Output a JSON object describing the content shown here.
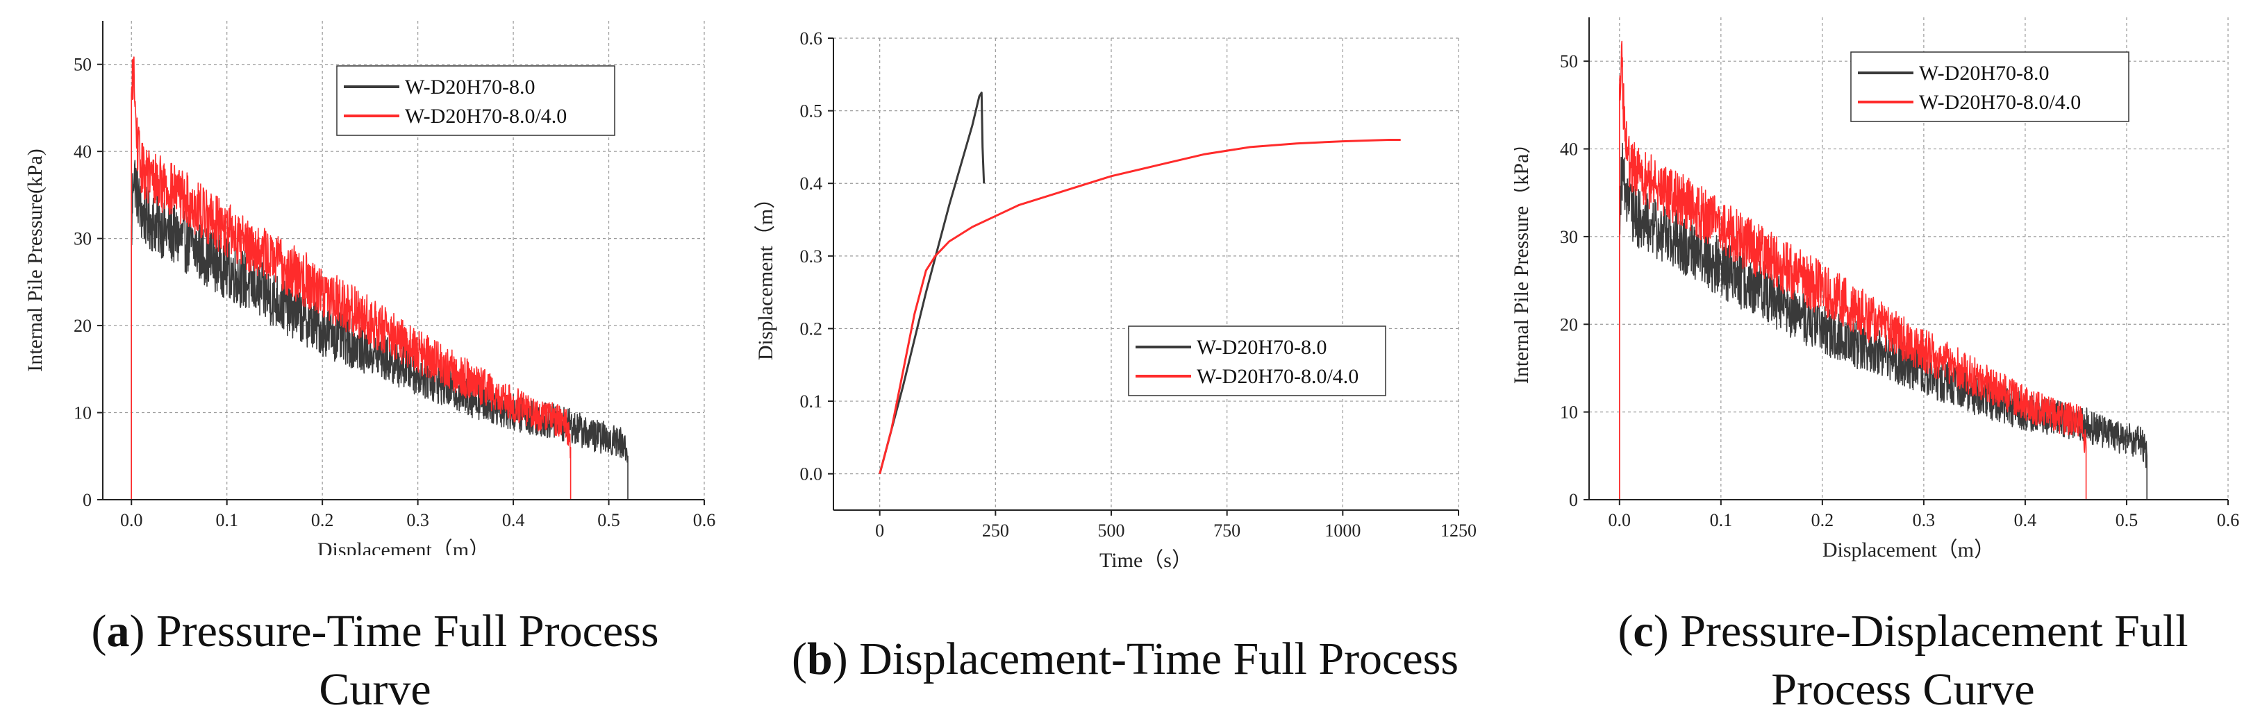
{
  "colors": {
    "series_black": "#3a3a3a",
    "series_red": "#ff2b2b",
    "grid": "#9a9a9a",
    "axis": "#222222"
  },
  "captions": {
    "a": {
      "letter": "a",
      "text": " Pressure-Time Full Process Curve"
    },
    "b": {
      "letter": "b",
      "text": " Displacement-Time Full Process"
    },
    "c": {
      "letter": "c",
      "text": " Pressure-Displacement Full Process Curve"
    }
  },
  "chart_data": [
    {
      "id": "a",
      "type": "line",
      "xlabel": "Displacement（m）",
      "ylabel": "Internal Pile Pressure(kPa)",
      "xlim": [
        -0.03,
        0.6
      ],
      "ylim": [
        0,
        55
      ],
      "xticks": [
        0.0,
        0.1,
        0.2,
        0.3,
        0.4,
        0.5,
        0.6
      ],
      "xtick_labels": [
        "0.0",
        "0.1",
        "0.2",
        "0.3",
        "0.4",
        "0.5",
        "0.6"
      ],
      "yticks": [
        0,
        10,
        20,
        30,
        40,
        50
      ],
      "ytick_labels": [
        "0",
        "10",
        "20",
        "30",
        "40",
        "50"
      ],
      "grid": true,
      "legend_position": "top-right",
      "series": [
        {
          "name": "W-D20H70-8.0",
          "color": "#3a3a3a",
          "noise": 3.5,
          "x": [
            0.0,
            0.0,
            0.002,
            0.005,
            0.01,
            0.02,
            0.05,
            0.1,
            0.15,
            0.2,
            0.25,
            0.3,
            0.35,
            0.4,
            0.43,
            0.46,
            0.48,
            0.5,
            0.515,
            0.52,
            0.52,
            0.52
          ],
          "y": [
            0,
            30,
            38,
            36,
            33,
            32,
            30,
            26.5,
            23,
            19.5,
            17,
            14.5,
            12,
            10,
            9.3,
            8.5,
            7.5,
            7,
            6.5,
            5,
            2,
            0
          ]
        },
        {
          "name": "W-D20H70-8.0/4.0",
          "color": "#ff2b2b",
          "noise": 3.2,
          "x": [
            0.0,
            0.0,
            0.002,
            0.005,
            0.01,
            0.02,
            0.05,
            0.1,
            0.15,
            0.2,
            0.25,
            0.3,
            0.35,
            0.4,
            0.43,
            0.455,
            0.46,
            0.46,
            0.46
          ],
          "y": [
            0,
            45,
            50,
            42,
            38,
            37,
            35,
            31,
            27.5,
            24,
            20.5,
            17,
            14,
            11,
            9.5,
            9,
            6,
            2,
            0
          ]
        }
      ]
    },
    {
      "id": "b",
      "type": "line",
      "xlabel": "Time（s）",
      "ylabel": "Displacement（m）",
      "xlim": [
        -100,
        1250
      ],
      "ylim": [
        -0.05,
        0.6
      ],
      "xticks": [
        0,
        250,
        500,
        750,
        1000,
        1250
      ],
      "xtick_labels": [
        "0",
        "250",
        "500",
        "750",
        "1000",
        "1250"
      ],
      "yticks": [
        0.0,
        0.1,
        0.2,
        0.3,
        0.4,
        0.5,
        0.6
      ],
      "ytick_labels": [
        "0.0",
        "0.1",
        "0.2",
        "0.3",
        "0.4",
        "0.5",
        "0.6"
      ],
      "grid": true,
      "legend_position": "bottom-right",
      "series": [
        {
          "name": "W-D20H70-8.0",
          "color": "#3a3a3a",
          "noise": 0,
          "x": [
            0,
            50,
            100,
            150,
            200,
            215,
            220,
            222,
            225
          ],
          "y": [
            0,
            0.12,
            0.25,
            0.37,
            0.48,
            0.52,
            0.525,
            0.45,
            0.4
          ]
        },
        {
          "name": "W-D20H70-8.0/4.0",
          "color": "#ff2b2b",
          "noise": 0,
          "x": [
            0,
            25,
            50,
            75,
            100,
            120,
            150,
            200,
            250,
            300,
            400,
            500,
            600,
            700,
            800,
            900,
            1000,
            1100,
            1125
          ],
          "y": [
            0,
            0.06,
            0.14,
            0.22,
            0.28,
            0.3,
            0.32,
            0.34,
            0.355,
            0.37,
            0.39,
            0.41,
            0.425,
            0.44,
            0.45,
            0.455,
            0.458,
            0.46,
            0.46
          ]
        }
      ]
    },
    {
      "id": "c",
      "type": "line",
      "xlabel": "Displacement（m）",
      "ylabel": "Internal Pile Pressure（kPa）",
      "xlim": [
        -0.03,
        0.6
      ],
      "ylim": [
        0,
        55
      ],
      "xticks": [
        0.0,
        0.1,
        0.2,
        0.3,
        0.4,
        0.5,
        0.6
      ],
      "xtick_labels": [
        "0.0",
        "0.1",
        "0.2",
        "0.3",
        "0.4",
        "0.5",
        "0.6"
      ],
      "yticks": [
        0,
        10,
        20,
        30,
        40,
        50
      ],
      "ytick_labels": [
        "0",
        "10",
        "20",
        "30",
        "40",
        "50"
      ],
      "grid": true,
      "legend_position": "top-right",
      "series": [
        {
          "name": "W-D20H70-8.0",
          "color": "#3a3a3a",
          "noise": 3.5,
          "x": [
            0.0,
            0.0,
            0.002,
            0.005,
            0.01,
            0.02,
            0.05,
            0.1,
            0.15,
            0.2,
            0.25,
            0.3,
            0.35,
            0.4,
            0.43,
            0.46,
            0.48,
            0.5,
            0.515,
            0.52,
            0.52,
            0.52
          ],
          "y": [
            0,
            30,
            38,
            36,
            33,
            32,
            30,
            26.5,
            23,
            19.5,
            17,
            14.5,
            12,
            10,
            9.3,
            8.5,
            7.5,
            7,
            6.5,
            5,
            2,
            0
          ]
        },
        {
          "name": "W-D20H70-8.0/4.0",
          "color": "#ff2b2b",
          "noise": 3.2,
          "x": [
            0.0,
            0.0,
            0.002,
            0.005,
            0.01,
            0.02,
            0.05,
            0.1,
            0.15,
            0.2,
            0.25,
            0.3,
            0.35,
            0.4,
            0.43,
            0.455,
            0.46,
            0.46,
            0.46
          ],
          "y": [
            0,
            45,
            50,
            42,
            38,
            37,
            35,
            31,
            27.5,
            24,
            20.5,
            17,
            14,
            11,
            9.5,
            9,
            6,
            2,
            0
          ]
        }
      ]
    }
  ]
}
